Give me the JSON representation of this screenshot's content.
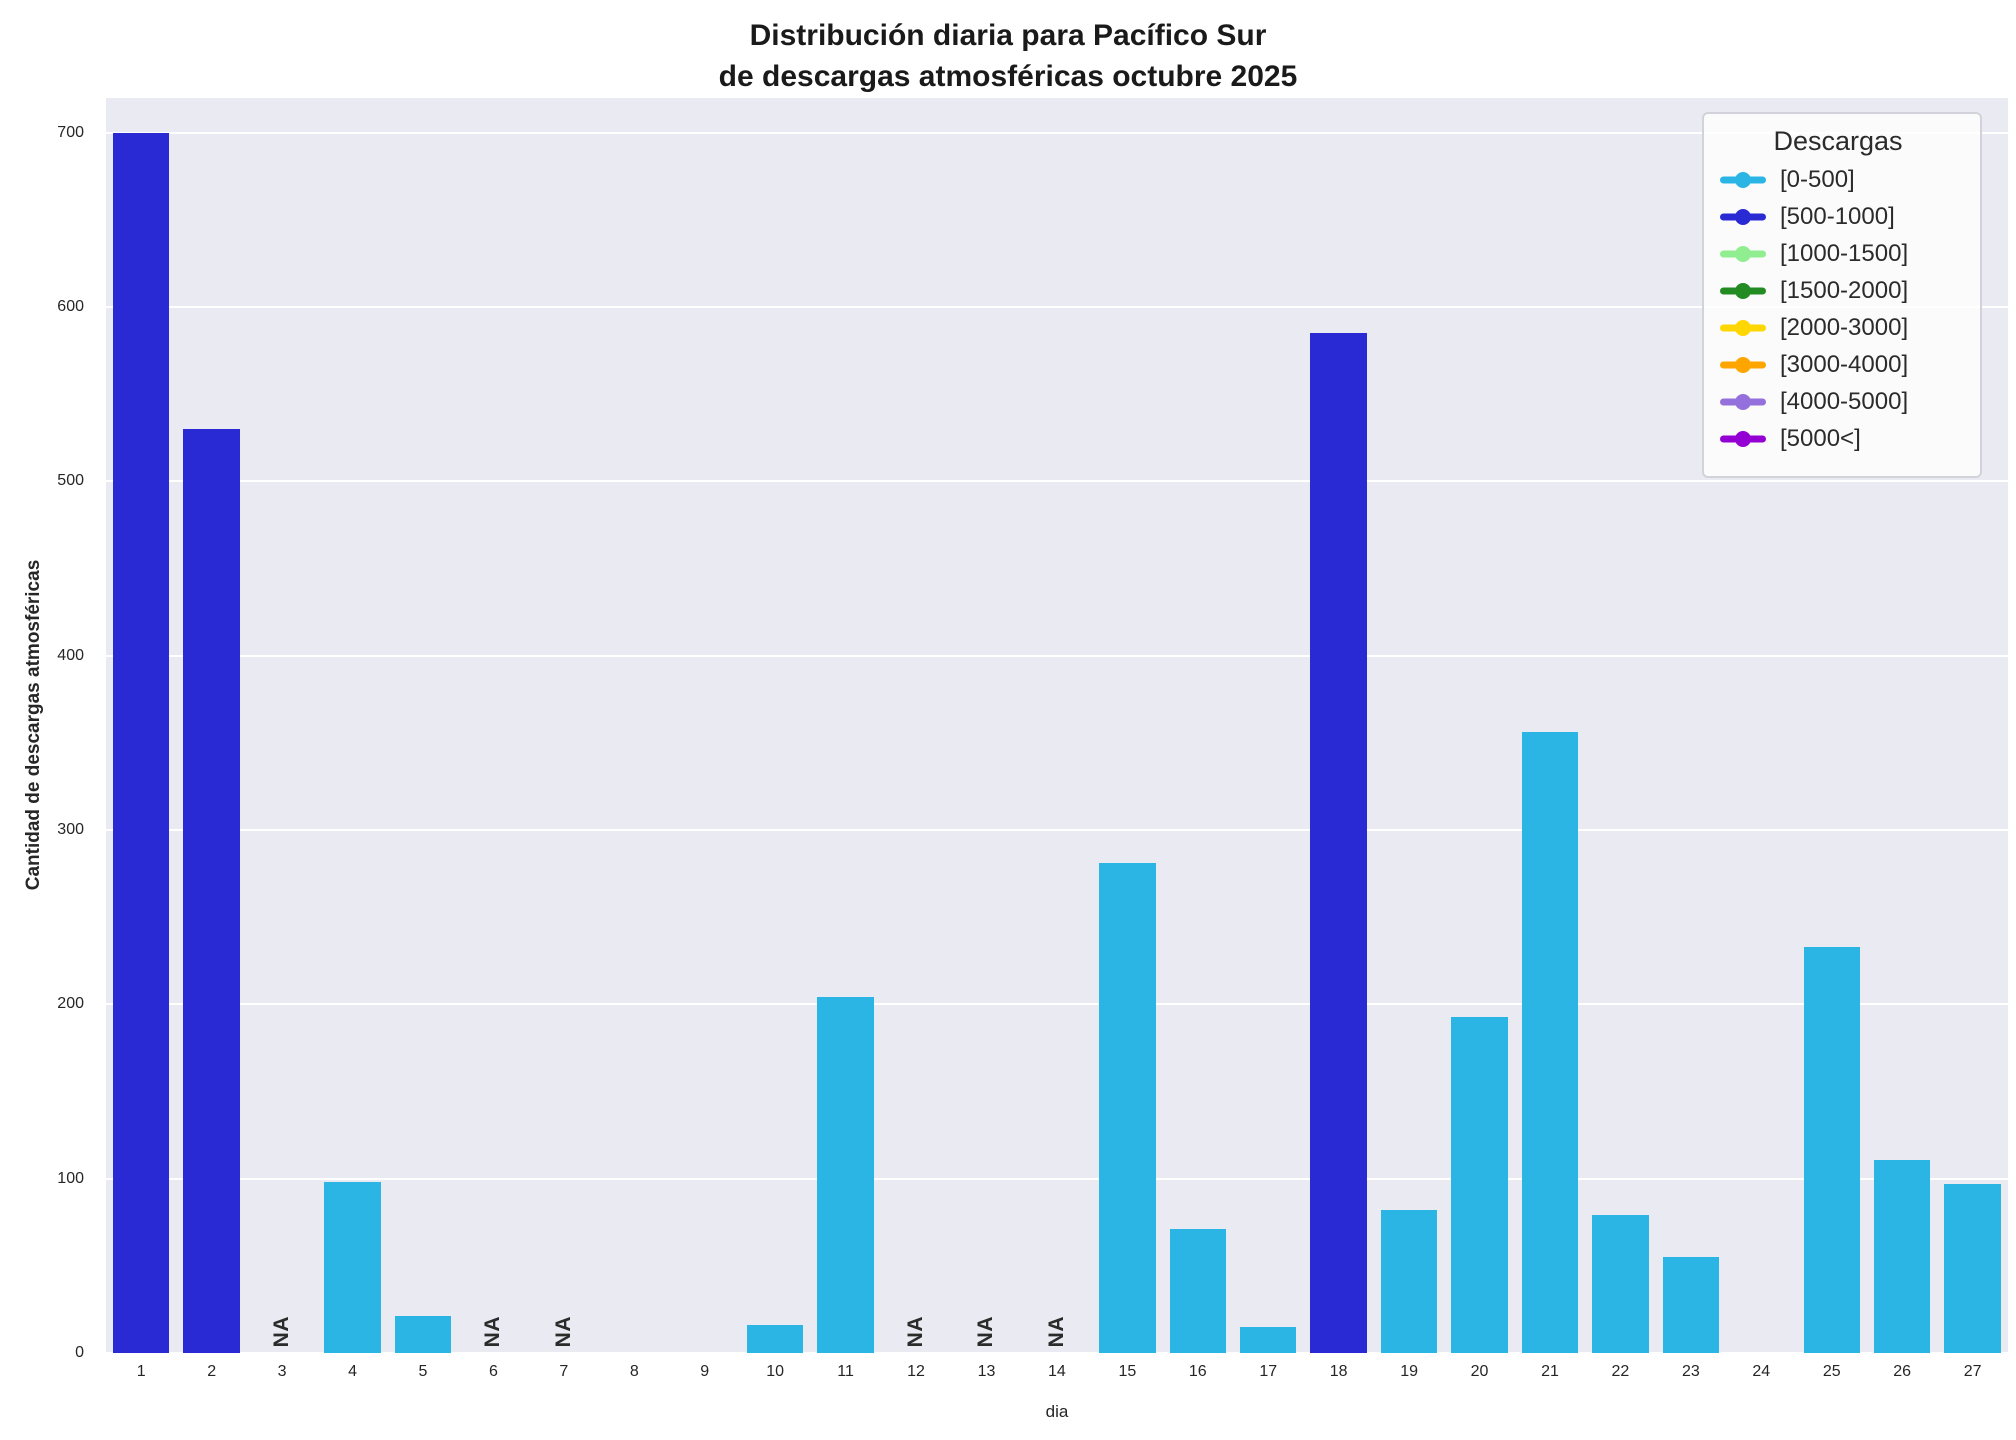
{
  "title": {
    "line1": "Distribución diaria para Pacífico Sur",
    "line2": "de descargas atmosféricas octubre 2025"
  },
  "axes": {
    "xlabel": "dia",
    "ylabel": "Cantidad de descargas atmosféricas",
    "yticks": [
      0,
      100,
      200,
      300,
      400,
      500,
      600,
      700
    ]
  },
  "legend": {
    "title": "Descargas",
    "entries": [
      {
        "label": "[0-500]",
        "color": "#2ab5e5"
      },
      {
        "label": "[500-1000]",
        "color": "#2a2ad4"
      },
      {
        "label": "[1000-1500]",
        "color": "#90ee90"
      },
      {
        "label": "[1500-2000]",
        "color": "#228b22"
      },
      {
        "label": "[2000-3000]",
        "color": "#ffd700"
      },
      {
        "label": "[3000-4000]",
        "color": "#ffa500"
      },
      {
        "label": "[4000-5000]",
        "color": "#9370db"
      },
      {
        "label": "[5000<]",
        "color": "#9400d3"
      }
    ]
  },
  "chart_data": {
    "type": "bar",
    "title": "Distribución diaria para Pacífico Sur de descargas atmosféricas octubre 2025",
    "xlabel": "dia",
    "ylabel": "Cantidad de descargas atmosféricas",
    "ylim": [
      0,
      720
    ],
    "grid": "horizontal",
    "legend_position": "top-right",
    "categories": [
      1,
      2,
      3,
      4,
      5,
      6,
      7,
      8,
      9,
      10,
      11,
      12,
      13,
      14,
      15,
      16,
      17,
      18,
      19,
      20,
      21,
      22,
      23,
      24,
      25,
      26,
      27
    ],
    "values": [
      700,
      530,
      null,
      98,
      21,
      null,
      null,
      0,
      0,
      16,
      204,
      null,
      null,
      null,
      281,
      71,
      15,
      585,
      82,
      193,
      356,
      79,
      55,
      0,
      233,
      111,
      97
    ],
    "na_text": "NA",
    "na_days": [
      3,
      6,
      7,
      12,
      13,
      14
    ],
    "bar_colors": [
      "#2a2ad4",
      "#2a2ad4",
      null,
      "#2ab5e5",
      "#2ab5e5",
      null,
      null,
      "#2ab5e5",
      "#2ab5e5",
      "#2ab5e5",
      "#2ab5e5",
      null,
      null,
      null,
      "#2ab5e5",
      "#2ab5e5",
      "#2ab5e5",
      "#2a2ad4",
      "#2ab5e5",
      "#2ab5e5",
      "#2ab5e5",
      "#2ab5e5",
      "#2ab5e5",
      "#2ab5e5",
      "#2ab5e5",
      "#2ab5e5",
      "#2ab5e5"
    ],
    "plot_background": "#eaeaf2",
    "gridline_color": "#ffffff"
  }
}
